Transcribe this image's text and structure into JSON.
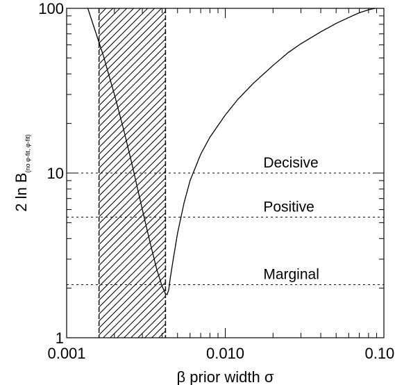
{
  "chart_data": {
    "type": "line",
    "x_scale": "log",
    "y_scale": "log",
    "xlim": [
      0.001,
      0.1
    ],
    "ylim": [
      1,
      100
    ],
    "x_ticks": [
      {
        "value": 0.001,
        "label": "0.001"
      },
      {
        "value": 0.01,
        "label": "0.010"
      },
      {
        "value": 0.1,
        "label": "0.100"
      }
    ],
    "y_ticks": [
      {
        "value": 1,
        "label": "1"
      },
      {
        "value": 10,
        "label": "10"
      },
      {
        "value": 100,
        "label": "100"
      }
    ],
    "xlabel": "β prior width σ",
    "ylabel": "2 ln B",
    "ylabel_subscript": "(no φ-fit, φ-fit)",
    "shaded_region": {
      "x_min": 0.0016,
      "x_max": 0.0042,
      "pattern": "diagonal-hatch"
    },
    "thresholds": [
      {
        "label": "Decisive",
        "y": 10
      },
      {
        "label": "Positive",
        "y": 5.4
      },
      {
        "label": "Marginal",
        "y": 2.1
      }
    ],
    "series": [
      {
        "x": [
          0.00136,
          0.0015,
          0.0017,
          0.002,
          0.0023,
          0.0026,
          0.003,
          0.0034,
          0.0037,
          0.004,
          0.0042,
          0.0043,
          0.0044,
          0.0045,
          0.0047,
          0.005,
          0.0055,
          0.006,
          0.007,
          0.008,
          0.01,
          0.012,
          0.015,
          0.02,
          0.025,
          0.03,
          0.04,
          0.05,
          0.06,
          0.07,
          0.08,
          0.088
        ],
        "y": [
          100,
          75,
          52,
          30,
          18,
          11,
          6.0,
          3.6,
          2.6,
          2.05,
          1.85,
          1.83,
          1.95,
          2.3,
          3.0,
          4.3,
          6.6,
          9.0,
          13.0,
          16.5,
          22.5,
          28,
          35,
          45,
          54,
          61,
          72,
          81,
          88,
          94,
          98,
          100
        ]
      }
    ]
  }
}
